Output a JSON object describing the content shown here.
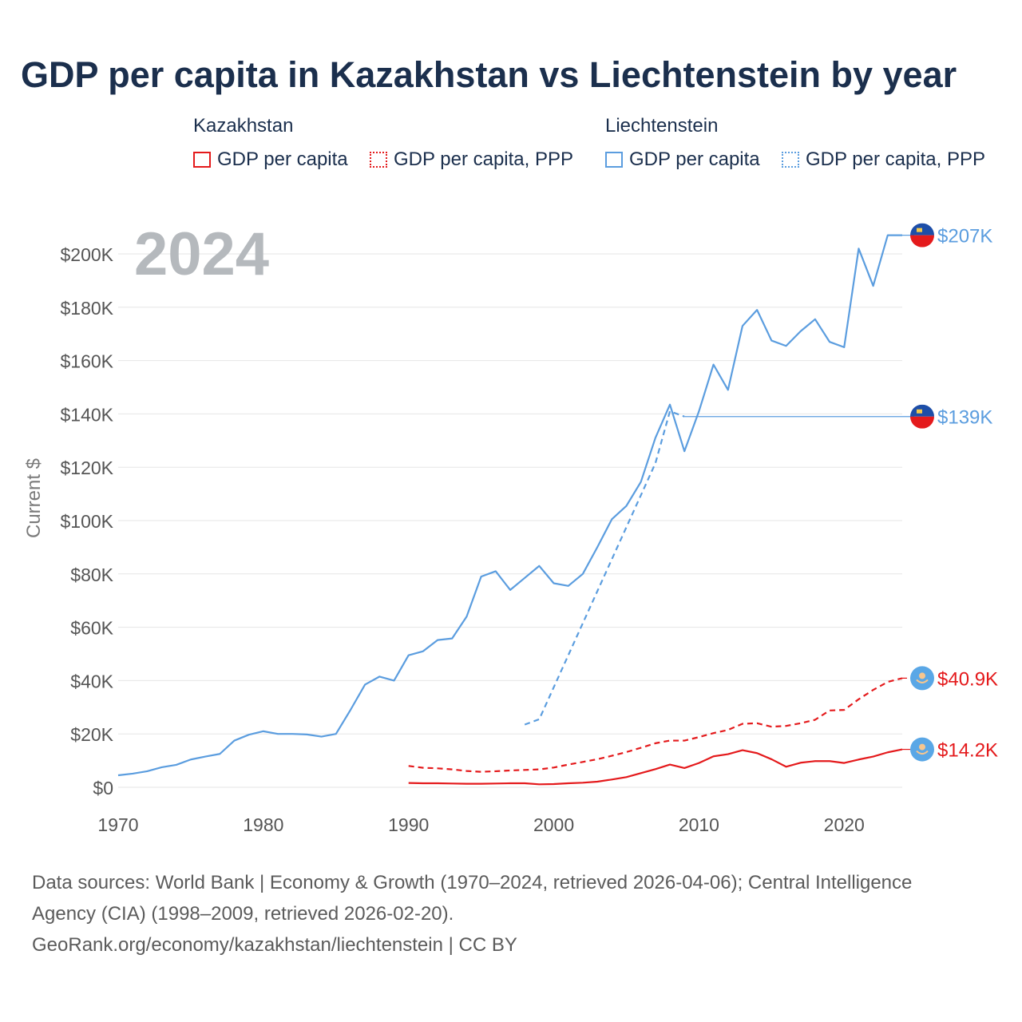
{
  "title": "GDP per capita in Kazakhstan vs Liechtenstein by year",
  "legend": {
    "groups": [
      {
        "country": "Kazakhstan",
        "color": "#e41a1c",
        "items": [
          {
            "label": "GDP per capita",
            "style": "solid"
          },
          {
            "label": "GDP per capita, PPP",
            "style": "dotted"
          }
        ]
      },
      {
        "country": "Liechtenstein",
        "color": "#5b9ddf",
        "items": [
          {
            "label": "GDP per capita",
            "style": "solid"
          },
          {
            "label": "GDP per capita, PPP",
            "style": "dotted"
          }
        ]
      }
    ]
  },
  "year_watermark": "2024",
  "footer": {
    "line1": "Data sources: World Bank | Economy & Growth (1970–2024, retrieved 2026-04-06); Central Intelligence",
    "line2": "Agency (CIA) (1998–2009, retrieved 2026-02-20).",
    "line3": "GeoRank.org/economy/kazakhstan/liechtenstein | CC BY"
  },
  "chart_data": {
    "type": "line",
    "title": "GDP per capita in Kazakhstan vs Liechtenstein by year",
    "ylabel": "Current $",
    "xlabel": "",
    "xlim": [
      1970,
      2024
    ],
    "ylim": [
      0,
      200000
    ],
    "x_ticks": [
      1970,
      1980,
      1990,
      2000,
      2010,
      2020
    ],
    "x_tick_labels": [
      "1970",
      "1980",
      "1990",
      "2000",
      "2010",
      "2020"
    ],
    "y_ticks": [
      0,
      20000,
      40000,
      60000,
      80000,
      100000,
      120000,
      140000,
      160000,
      180000,
      200000
    ],
    "y_tick_labels": [
      "$0",
      "$20K",
      "$40K",
      "$60K",
      "$80K",
      "$100K",
      "$120K",
      "$140K",
      "$160K",
      "$180K",
      "$200K"
    ],
    "grid": true,
    "series": [
      {
        "name": "Liechtenstein GDP per capita",
        "country": "Liechtenstein",
        "color": "#5b9ddf",
        "dash": "solid",
        "end_label": "$207K",
        "end_value": 207000,
        "x": [
          1970,
          1971,
          1972,
          1973,
          1974,
          1975,
          1976,
          1977,
          1978,
          1979,
          1980,
          1981,
          1982,
          1983,
          1984,
          1985,
          1986,
          1987,
          1988,
          1989,
          1990,
          1991,
          1992,
          1993,
          1994,
          1995,
          1996,
          1997,
          1998,
          1999,
          2000,
          2001,
          2002,
          2003,
          2004,
          2005,
          2006,
          2007,
          2008,
          2009,
          2010,
          2011,
          2012,
          2013,
          2014,
          2015,
          2016,
          2017,
          2018,
          2019,
          2020,
          2021,
          2022,
          2023,
          2024
        ],
        "y": [
          4500,
          5100,
          6000,
          7500,
          8400,
          10400,
          11500,
          12500,
          17500,
          19700,
          21000,
          20000,
          20000,
          19800,
          19000,
          20000,
          29000,
          38500,
          41500,
          40000,
          49500,
          51000,
          55200,
          55800,
          64000,
          79000,
          81000,
          74000,
          78500,
          83000,
          76500,
          75500,
          80000,
          90000,
          100500,
          105500,
          114500,
          131000,
          143500,
          126000,
          141000,
          158500,
          149000,
          173000,
          179000,
          167500,
          165500,
          171000,
          175500,
          167000,
          165000,
          202000,
          188000,
          207000,
          207000
        ]
      },
      {
        "name": "Liechtenstein GDP per capita, PPP",
        "country": "Liechtenstein",
        "color": "#5b9ddf",
        "dash": "dashed",
        "end_label": "$139K",
        "end_value": 139000,
        "x": [
          1998,
          1999,
          2000,
          2001,
          2002,
          2003,
          2004,
          2005,
          2006,
          2007,
          2008,
          2009
        ],
        "y": [
          23500,
          25500,
          37500,
          49500,
          61500,
          73500,
          85500,
          97500,
          109500,
          121500,
          141000,
          139000
        ]
      },
      {
        "name": "Kazakhstan GDP per capita, PPP",
        "country": "Kazakhstan",
        "color": "#e41a1c",
        "dash": "dashed",
        "end_label": "$40.9K",
        "end_value": 40900,
        "x": [
          1990,
          1991,
          1992,
          1993,
          1994,
          1995,
          1996,
          1997,
          1998,
          1999,
          2000,
          2001,
          2002,
          2003,
          2004,
          2005,
          2006,
          2007,
          2008,
          2009,
          2010,
          2011,
          2012,
          2013,
          2014,
          2015,
          2016,
          2017,
          2018,
          2019,
          2020,
          2021,
          2022,
          2023,
          2024
        ],
        "y": [
          8000,
          7300,
          7100,
          6700,
          6100,
          5800,
          6000,
          6300,
          6500,
          6700,
          7400,
          8500,
          9500,
          10500,
          11800,
          13200,
          14800,
          16500,
          17500,
          17500,
          18800,
          20300,
          21500,
          23800,
          24000,
          22700,
          23000,
          24000,
          25300,
          28800,
          29000,
          33000,
          36500,
          39500,
          40900
        ]
      },
      {
        "name": "Kazakhstan GDP per capita",
        "country": "Kazakhstan",
        "color": "#e41a1c",
        "dash": "solid",
        "end_label": "$14.2K",
        "end_value": 14200,
        "x": [
          1990,
          1991,
          1992,
          1993,
          1994,
          1995,
          1996,
          1997,
          1998,
          1999,
          2000,
          2001,
          2002,
          2003,
          2004,
          2005,
          2006,
          2007,
          2008,
          2009,
          2010,
          2011,
          2012,
          2013,
          2014,
          2015,
          2016,
          2017,
          2018,
          2019,
          2020,
          2021,
          2022,
          2023,
          2024
        ],
        "y": [
          1600,
          1500,
          1500,
          1400,
          1300,
          1300,
          1400,
          1500,
          1500,
          1100,
          1200,
          1500,
          1700,
          2100,
          2900,
          3800,
          5300,
          6800,
          8500,
          7200,
          9100,
          11600,
          12400,
          13900,
          12800,
          10500,
          7700,
          9200,
          9800,
          9800,
          9100,
          10400,
          11500,
          13100,
          14200
        ]
      }
    ]
  }
}
